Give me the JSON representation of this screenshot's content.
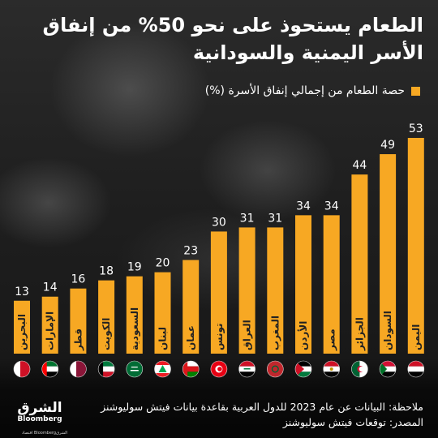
{
  "title": "الطعام يستحوذ على نحو 50% من إنفاق الأسر اليمنية والسودانية",
  "legend": {
    "label": "حصة الطعام من إجمالي إنفاق الأسرة (%)",
    "color": "#f7a823"
  },
  "note": "ملاحظة: البيانات عن عام 2023 للدول العربية بقاعدة بيانات فيتش سوليوشنز",
  "source": "المصدر: توقعات فيتش سوليوشنز",
  "logo": {
    "name": "الشرق",
    "sub": "Bloomberg",
    "tagline": "الشرقBloomberg اقتصاد"
  },
  "chart_data": {
    "type": "bar",
    "categories": [
      "البحرين",
      "الإمارات",
      "قطر",
      "الكويت",
      "السعودية",
      "لبنان",
      "عمان",
      "تونس",
      "العراق",
      "المغرب",
      "الأردن",
      "مصر",
      "الجزائر",
      "السودان",
      "اليمن"
    ],
    "values": [
      13,
      14,
      16,
      18,
      19,
      20,
      23,
      30,
      31,
      31,
      34,
      34,
      44,
      49,
      53
    ],
    "ylim": [
      0,
      53
    ],
    "title": "",
    "xlabel": "",
    "ylabel": "",
    "bar_color": "#f7a823",
    "flags": [
      "bahrain-flag",
      "uae-flag",
      "qatar-flag",
      "kuwait-flag",
      "saudi-flag",
      "lebanon-flag",
      "oman-flag",
      "tunisia-flag",
      "iraq-flag",
      "morocco-flag",
      "jordan-flag",
      "egypt-flag",
      "algeria-flag",
      "sudan-flag",
      "yemen-flag"
    ]
  }
}
